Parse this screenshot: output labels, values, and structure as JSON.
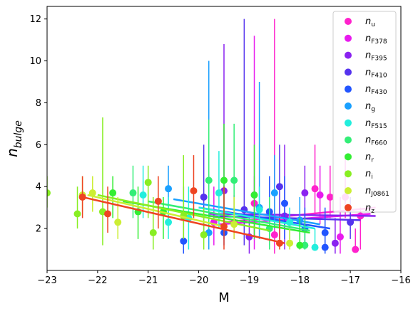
{
  "chart_data": {
    "type": "scatter",
    "xlabel": "M",
    "ylabel": "n_bulge",
    "xlim": [
      -23,
      -16
    ],
    "ylim": [
      0,
      12.6
    ],
    "xticks": [
      -23,
      -22,
      -21,
      -20,
      -19,
      -18,
      -17,
      -16
    ],
    "xtick_labels": [
      "−23",
      "−22",
      "−21",
      "−20",
      "−19",
      "−18",
      "−17",
      "−16"
    ],
    "yticks": [
      2,
      4,
      6,
      8,
      10,
      12
    ],
    "ytick_labels": [
      "2",
      "4",
      "6",
      "8",
      "10",
      "12"
    ],
    "grid": false,
    "legend_position": "upper right",
    "series": [
      {
        "name": "n_u",
        "label_main": "n",
        "label_sub": "u",
        "color": "#ff22cc",
        "fit": {
          "x": [
            -19.5,
            -16.5
          ],
          "y": [
            2.3,
            3.0
          ]
        },
        "points": [
          {
            "x": -19.3,
            "y": 2.3,
            "lo": 1.5,
            "hi": 3.6
          },
          {
            "x": -18.9,
            "y": 3.2,
            "lo": 1.6,
            "hi": 4.5
          },
          {
            "x": -18.5,
            "y": 1.7,
            "lo": 0.8,
            "hi": 12.0
          },
          {
            "x": -17.7,
            "y": 3.9,
            "lo": 2.6,
            "hi": 6.0
          },
          {
            "x": -17.4,
            "y": 3.5,
            "lo": 2.5,
            "hi": 5.0
          },
          {
            "x": -17.1,
            "y": 3.5,
            "lo": 2.5,
            "hi": 5.5
          },
          {
            "x": -16.8,
            "y": 2.6,
            "lo": 1.0,
            "hi": 3.0
          },
          {
            "x": -16.9,
            "y": 1.0,
            "lo": 1.0,
            "hi": 2.0
          }
        ]
      },
      {
        "name": "n_F378",
        "label_main": "n",
        "label_sub": "F378",
        "color": "#e81aee",
        "fit": {
          "x": [
            -19.6,
            -16.6
          ],
          "y": [
            2.2,
            2.7
          ]
        },
        "points": [
          {
            "x": -19.7,
            "y": 2.3,
            "lo": 1.2,
            "hi": 4.0
          },
          {
            "x": -18.9,
            "y": 3.6,
            "lo": 1.0,
            "hi": 11.2
          },
          {
            "x": -17.6,
            "y": 3.6,
            "lo": 2.2,
            "hi": 5.0
          },
          {
            "x": -17.2,
            "y": 1.6,
            "lo": 0.8,
            "hi": 3.5
          }
        ]
      },
      {
        "name": "n_F395",
        "label_main": "n",
        "label_sub": "F395",
        "color": "#8a22f0",
        "fit": {
          "x": [
            -19.8,
            -16.5
          ],
          "y": [
            2.7,
            2.6
          ]
        },
        "points": [
          {
            "x": -19.5,
            "y": 3.8,
            "lo": 1.5,
            "hi": 10.8
          },
          {
            "x": -19.0,
            "y": 1.6,
            "lo": 0.8,
            "hi": 2.5
          },
          {
            "x": -18.3,
            "y": 2.6,
            "lo": 1.0,
            "hi": 6.0
          },
          {
            "x": -17.9,
            "y": 3.7,
            "lo": 2.0,
            "hi": 5.0
          },
          {
            "x": -17.3,
            "y": 1.3,
            "lo": 0.8,
            "hi": 2.5
          }
        ]
      },
      {
        "name": "n_F410",
        "label_main": "n",
        "label_sub": "F410",
        "color": "#5533ee",
        "fit": {
          "x": [
            -19.8,
            -16.8
          ],
          "y": [
            2.6,
            2.4
          ]
        },
        "points": [
          {
            "x": -19.9,
            "y": 3.5,
            "lo": 1.8,
            "hi": 6.0
          },
          {
            "x": -19.1,
            "y": 2.9,
            "lo": 1.2,
            "hi": 12.0
          },
          {
            "x": -18.4,
            "y": 4.0,
            "lo": 1.5,
            "hi": 6.0
          },
          {
            "x": -17.0,
            "y": 2.3,
            "lo": 1.5,
            "hi": 3.5
          }
        ]
      },
      {
        "name": "n_F430",
        "label_main": "n",
        "label_sub": "F430",
        "color": "#2255ff",
        "fit": {
          "x": [
            -20.0,
            -17.4
          ],
          "y": [
            3.0,
            2.0
          ]
        },
        "points": [
          {
            "x": -20.3,
            "y": 1.4,
            "lo": 0.8,
            "hi": 4.0
          },
          {
            "x": -19.5,
            "y": 1.8,
            "lo": 1.2,
            "hi": 4.0
          },
          {
            "x": -18.6,
            "y": 2.8,
            "lo": 1.2,
            "hi": 4.5
          },
          {
            "x": -18.3,
            "y": 3.2,
            "lo": 1.5,
            "hi": 4.5
          },
          {
            "x": -17.9,
            "y": 2.0,
            "lo": 1.0,
            "hi": 3.0
          },
          {
            "x": -17.5,
            "y": 1.8,
            "lo": 1.0,
            "hi": 3.0
          },
          {
            "x": -17.5,
            "y": 1.1,
            "lo": 0.8,
            "hi": 2.0
          }
        ]
      },
      {
        "name": "n_g",
        "label_main": "n",
        "label_sub": "g",
        "color": "#1aa0ff",
        "fit": {
          "x": [
            -20.5,
            -17.6
          ],
          "y": [
            3.4,
            2.2
          ]
        },
        "points": [
          {
            "x": -20.6,
            "y": 3.9,
            "lo": 2.5,
            "hi": 5.0
          },
          {
            "x": -19.8,
            "y": 1.8,
            "lo": 1.0,
            "hi": 10.0
          },
          {
            "x": -18.8,
            "y": 3.0,
            "lo": 1.5,
            "hi": 9.0
          },
          {
            "x": -18.5,
            "y": 3.7,
            "lo": 2.0,
            "hi": 5.5
          },
          {
            "x": -18.0,
            "y": 2.4,
            "lo": 1.5,
            "hi": 3.5
          }
        ]
      },
      {
        "name": "n_F515",
        "label_main": "n",
        "label_sub": "F515",
        "color": "#22eedd",
        "fit": {
          "x": [
            -20.0,
            -17.7
          ],
          "y": [
            3.0,
            2.0
          ]
        },
        "points": [
          {
            "x": -21.1,
            "y": 3.6,
            "lo": 2.5,
            "hi": 5.0
          },
          {
            "x": -20.6,
            "y": 2.3,
            "lo": 1.5,
            "hi": 3.5
          },
          {
            "x": -20.2,
            "y": 2.5,
            "lo": 1.0,
            "hi": 4.0
          },
          {
            "x": -19.6,
            "y": 3.7,
            "lo": 2.0,
            "hi": 5.7
          },
          {
            "x": -18.8,
            "y": 2.9,
            "lo": 2.0,
            "hi": 4.0
          },
          {
            "x": -18.2,
            "y": 2.3,
            "lo": 1.5,
            "hi": 3.0
          },
          {
            "x": -17.7,
            "y": 1.1,
            "lo": 1.0,
            "hi": 2.0
          }
        ]
      },
      {
        "name": "n_F660",
        "label_main": "n",
        "label_sub": "F660",
        "color": "#33ee77",
        "fit": {
          "x": [
            -21.0,
            -17.8
          ],
          "y": [
            3.3,
            1.9
          ]
        },
        "points": [
          {
            "x": -21.3,
            "y": 3.7,
            "lo": 2.5,
            "hi": 5.0
          },
          {
            "x": -19.8,
            "y": 4.3,
            "lo": 2.0,
            "hi": 7.2
          },
          {
            "x": -19.3,
            "y": 4.3,
            "lo": 2.5,
            "hi": 7.0
          },
          {
            "x": -18.6,
            "y": 2.0,
            "lo": 1.0,
            "hi": 3.5
          },
          {
            "x": -17.9,
            "y": 1.2,
            "lo": 1.0,
            "hi": 2.5
          }
        ]
      },
      {
        "name": "n_r",
        "label_main": "n",
        "label_sub": "r",
        "color": "#33ee33",
        "fit": {
          "x": [
            -21.5,
            -17.8
          ],
          "y": [
            3.3,
            1.8
          ]
        },
        "points": [
          {
            "x": -21.7,
            "y": 3.7,
            "lo": 2.5,
            "hi": 4.5
          },
          {
            "x": -21.2,
            "y": 2.8,
            "lo": 1.5,
            "hi": 4.0
          },
          {
            "x": -20.7,
            "y": 2.8,
            "lo": 1.5,
            "hi": 3.5
          },
          {
            "x": -19.5,
            "y": 4.3,
            "lo": 2.0,
            "hi": 7.0
          },
          {
            "x": -18.9,
            "y": 3.6,
            "lo": 1.5,
            "hi": 6.0
          },
          {
            "x": -18.0,
            "y": 1.2,
            "lo": 1.0,
            "hi": 2.5
          }
        ]
      },
      {
        "name": "n_i",
        "label_main": "n",
        "label_sub": "i",
        "color": "#88ee22",
        "fit": {
          "x": [
            -22.0,
            -18.6
          ],
          "y": [
            3.6,
            1.9
          ]
        },
        "points": [
          {
            "x": -23.0,
            "y": 3.7,
            "lo": 3.0,
            "hi": 4.5
          },
          {
            "x": -22.4,
            "y": 2.7,
            "lo": 2.0,
            "hi": 4.0
          },
          {
            "x": -21.9,
            "y": 2.8,
            "lo": 1.2,
            "hi": 7.3
          },
          {
            "x": -21.0,
            "y": 4.2,
            "lo": 2.5,
            "hi": 5.0
          },
          {
            "x": -20.9,
            "y": 1.8,
            "lo": 1.0,
            "hi": 3.5
          },
          {
            "x": -20.3,
            "y": 2.6,
            "lo": 1.5,
            "hi": 5.5
          },
          {
            "x": -19.9,
            "y": 1.7,
            "lo": 1.0,
            "hi": 3.0
          }
        ]
      },
      {
        "name": "n_J0861",
        "label_main": "n",
        "label_sub": "J0861",
        "color": "#ccee33",
        "fit": {
          "x": [
            -22.2,
            -19.5
          ],
          "y": [
            3.6,
            2.1
          ]
        },
        "points": [
          {
            "x": -22.3,
            "y": 3.6,
            "lo": 2.8,
            "hi": 4.5
          },
          {
            "x": -22.1,
            "y": 3.7,
            "lo": 2.8,
            "hi": 4.5
          },
          {
            "x": -21.6,
            "y": 2.3,
            "lo": 1.5,
            "hi": 3.5
          },
          {
            "x": -19.3,
            "y": 2.2,
            "lo": 1.5,
            "hi": 3.5
          },
          {
            "x": -18.2,
            "y": 1.3,
            "lo": 1.0,
            "hi": 2.0
          }
        ]
      },
      {
        "name": "n_z",
        "label_main": "n",
        "label_sub": "z",
        "color": "#ee4422",
        "fit": {
          "x": [
            -22.3,
            -18.3
          ],
          "y": [
            3.5,
            1.3
          ]
        },
        "points": [
          {
            "x": -22.3,
            "y": 3.5,
            "lo": 2.5,
            "hi": 4.5
          },
          {
            "x": -21.8,
            "y": 2.7,
            "lo": 1.8,
            "hi": 4.0
          },
          {
            "x": -20.8,
            "y": 3.3,
            "lo": 2.0,
            "hi": 4.5
          },
          {
            "x": -20.1,
            "y": 3.8,
            "lo": 2.5,
            "hi": 5.5
          },
          {
            "x": -19.5,
            "y": 2.1,
            "lo": 1.0,
            "hi": 4.0
          },
          {
            "x": -18.4,
            "y": 1.3,
            "lo": 1.0,
            "hi": 2.5
          }
        ]
      }
    ]
  }
}
